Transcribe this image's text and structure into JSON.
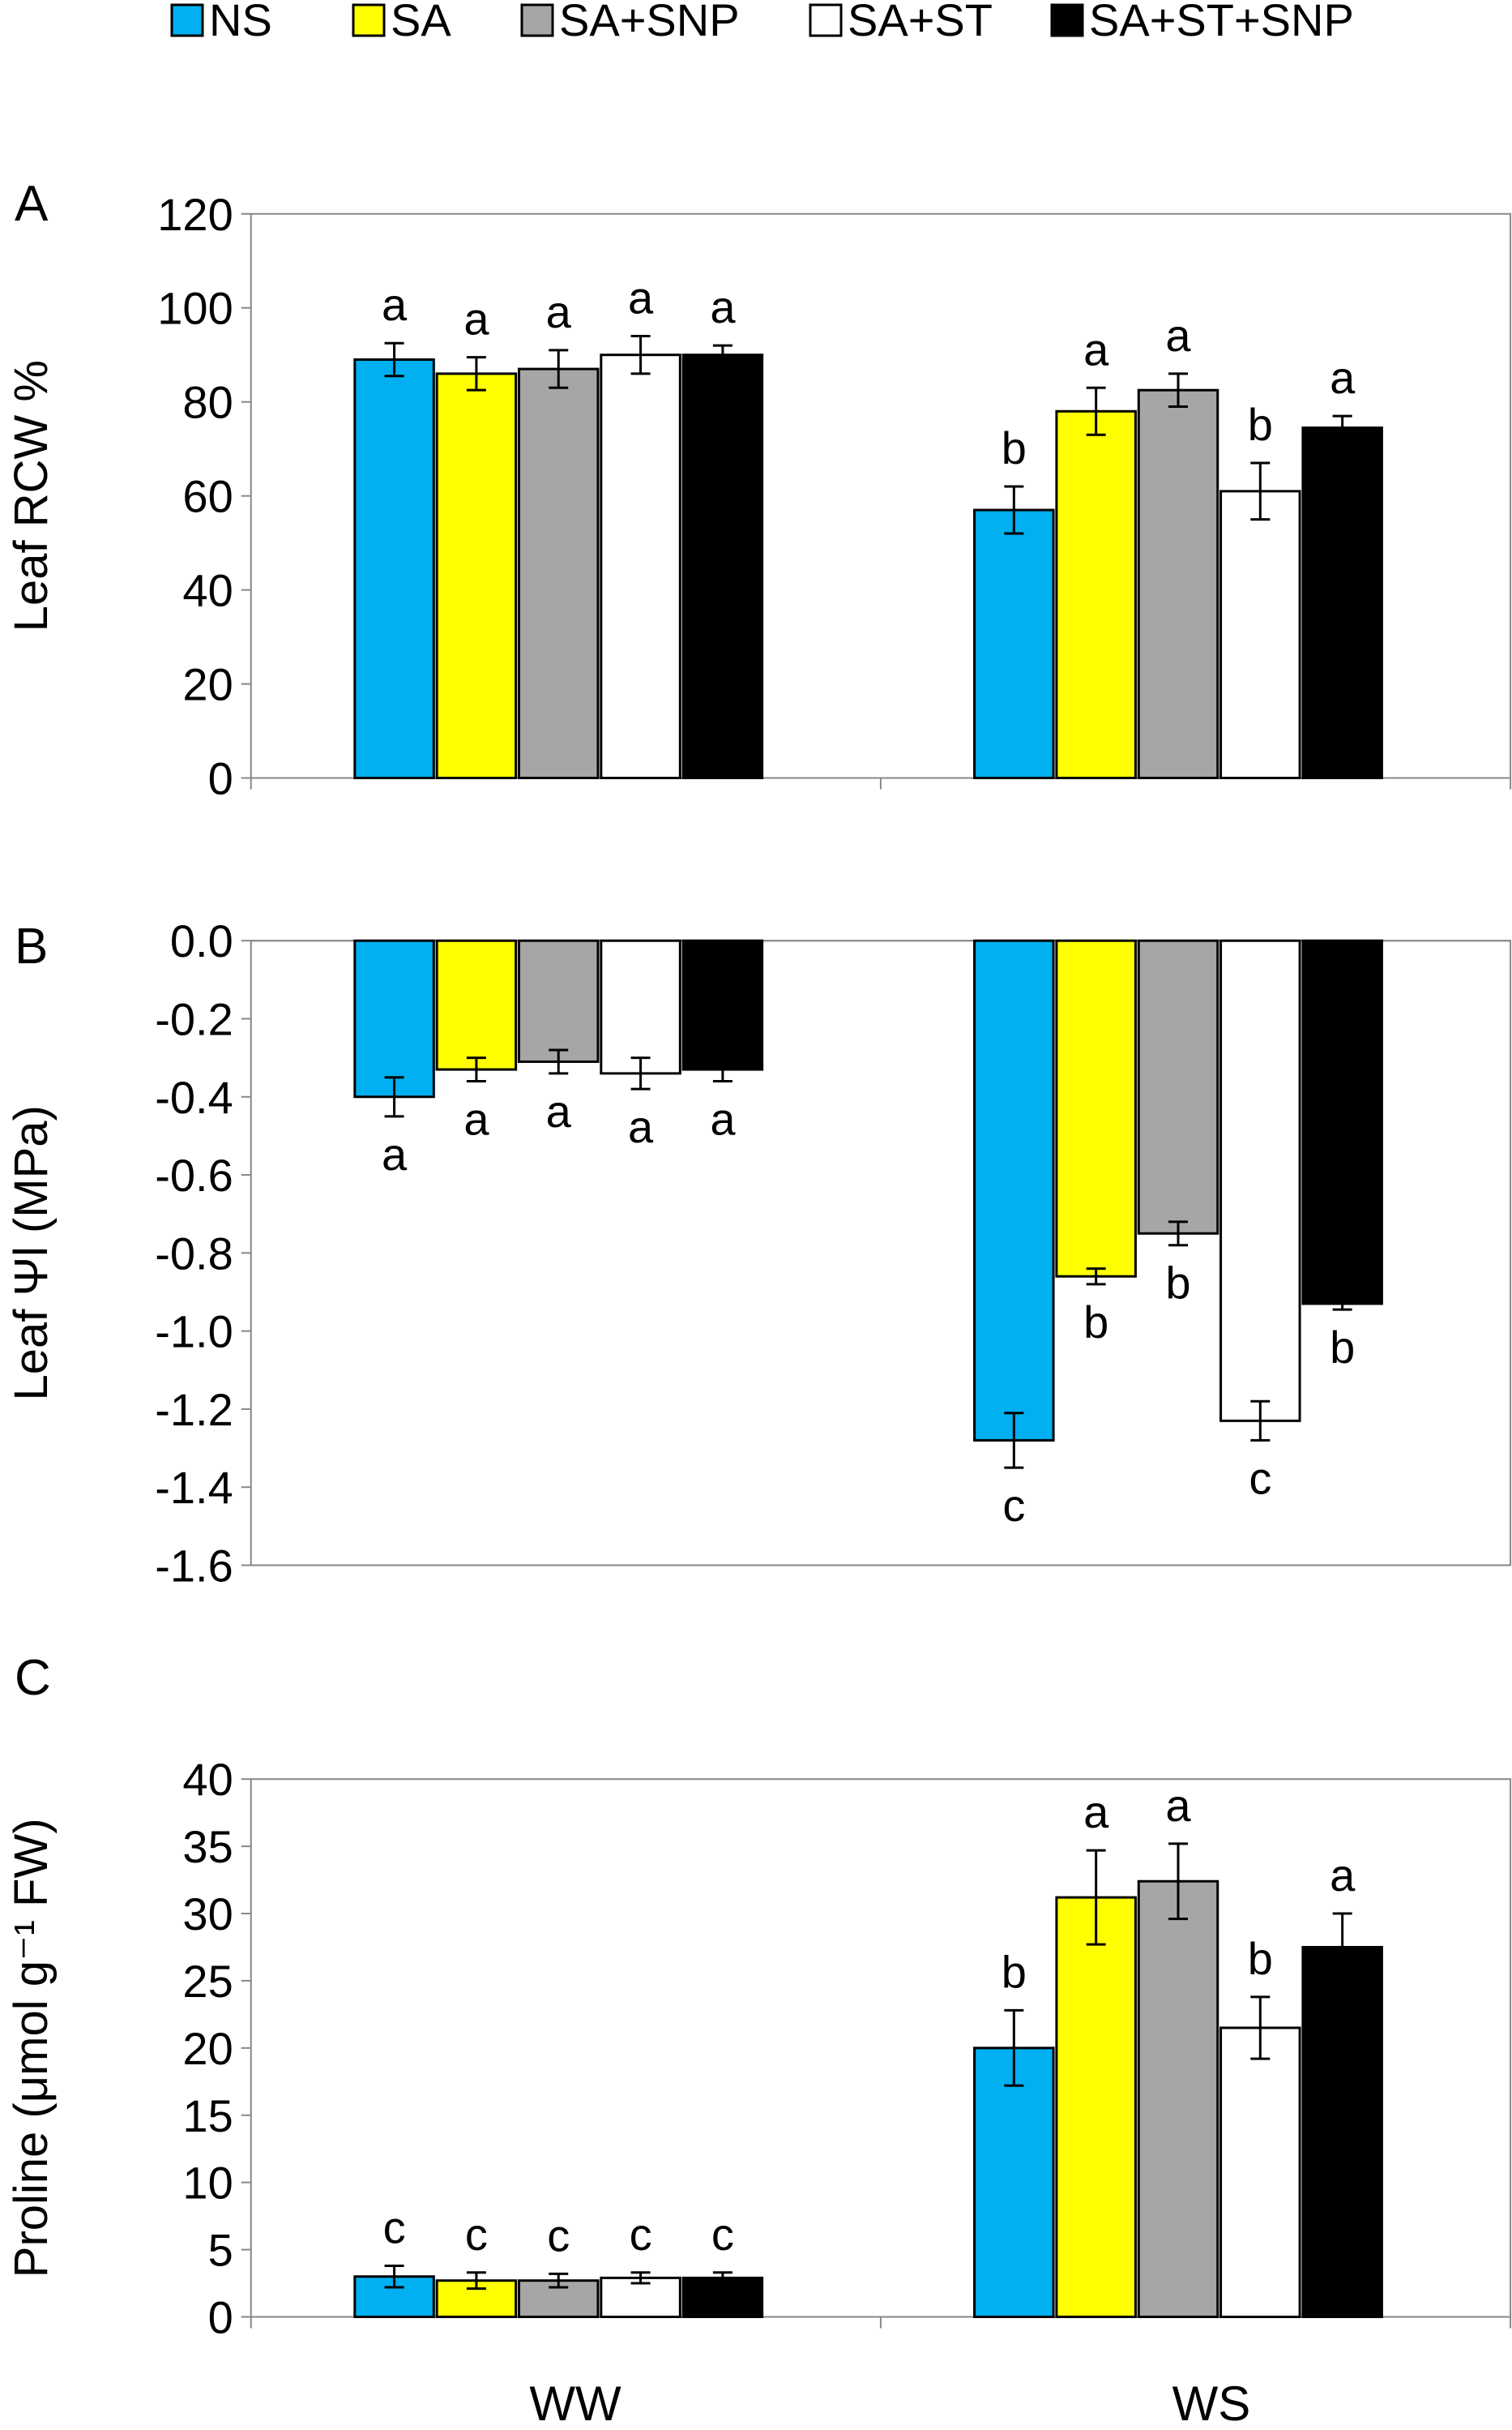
{
  "legend": {
    "placement": "top",
    "items": [
      {
        "label": "NS",
        "color": "#00B0F0"
      },
      {
        "label": "SA",
        "color": "#FFFF00"
      },
      {
        "label": "SA+SNP",
        "color": "#A6A6A6"
      },
      {
        "label": "SA+ST",
        "color": "#FFFFFF"
      },
      {
        "label": "SA+ST+SNP",
        "color": "#000000"
      }
    ]
  },
  "x_categories": [
    "WW",
    "WS"
  ],
  "chart_data": [
    {
      "type": "bar",
      "panel": "A",
      "ylabel": "Leaf RCW %",
      "ylim": [
        0,
        120
      ],
      "yticks": [
        "0",
        "20",
        "40",
        "60",
        "80",
        "100",
        "120"
      ],
      "grid": false,
      "categories": [
        "WW",
        "WS"
      ],
      "series": [
        {
          "name": "NS",
          "values": [
            89,
            57
          ],
          "errors": [
            3.5,
            5
          ],
          "letters": [
            "a",
            "b"
          ]
        },
        {
          "name": "SA",
          "values": [
            86,
            78
          ],
          "errors": [
            3.5,
            5
          ],
          "letters": [
            "a",
            "a"
          ]
        },
        {
          "name": "SA+SNP",
          "values": [
            87,
            82.5
          ],
          "errors": [
            4,
            3.5
          ],
          "letters": [
            "a",
            "a"
          ]
        },
        {
          "name": "SA+ST",
          "values": [
            90,
            61
          ],
          "errors": [
            4,
            6
          ],
          "letters": [
            "a",
            "b"
          ]
        },
        {
          "name": "SA+ST+SNP",
          "values": [
            90,
            74.5
          ],
          "errors": [
            2,
            2.5
          ],
          "letters": [
            "a",
            "a"
          ]
        }
      ]
    },
    {
      "type": "bar",
      "panel": "B",
      "ylabel": "Leaf Ψl (MPa)",
      "ylim": [
        -1.6,
        0
      ],
      "yticks": [
        "-1.6",
        "-1.4",
        "-1.2",
        "-1.0",
        "-0.8",
        "-0.6",
        "-0.4",
        "-0.2",
        "0.0"
      ],
      "grid": false,
      "categories": [
        "WW",
        "WS"
      ],
      "series": [
        {
          "name": "NS",
          "values": [
            -0.4,
            -1.28
          ],
          "errors": [
            0.05,
            0.07
          ],
          "letters": [
            "a",
            "c"
          ]
        },
        {
          "name": "SA",
          "values": [
            -0.33,
            -0.86
          ],
          "errors": [
            0.03,
            0.02
          ],
          "letters": [
            "a",
            "b"
          ]
        },
        {
          "name": "SA+SNP",
          "values": [
            -0.31,
            -0.75
          ],
          "errors": [
            0.03,
            0.03
          ],
          "letters": [
            "a",
            "b"
          ]
        },
        {
          "name": "SA+ST",
          "values": [
            -0.34,
            -1.23
          ],
          "errors": [
            0.04,
            0.05
          ],
          "letters": [
            "a",
            "c"
          ]
        },
        {
          "name": "SA+ST+SNP",
          "values": [
            -0.33,
            -0.93
          ],
          "errors": [
            0.03,
            0.015
          ],
          "letters": [
            "a",
            "b"
          ]
        }
      ]
    },
    {
      "type": "bar",
      "panel": "C",
      "ylabel": "Proline (μmol g⁻¹ FW)",
      "ylim": [
        0,
        40
      ],
      "yticks": [
        "0",
        "5",
        "10",
        "15",
        "20",
        "25",
        "30",
        "35",
        "40"
      ],
      "grid": false,
      "categories": [
        "WW",
        "WS"
      ],
      "series": [
        {
          "name": "NS",
          "values": [
            3,
            20
          ],
          "errors": [
            0.8,
            2.8
          ],
          "letters": [
            "c",
            "b"
          ]
        },
        {
          "name": "SA",
          "values": [
            2.7,
            31.2
          ],
          "errors": [
            0.6,
            3.5
          ],
          "letters": [
            "c",
            "a"
          ]
        },
        {
          "name": "SA+SNP",
          "values": [
            2.7,
            32.4
          ],
          "errors": [
            0.5,
            2.8
          ],
          "letters": [
            "c",
            "a"
          ]
        },
        {
          "name": "SA+ST",
          "values": [
            2.9,
            21.5
          ],
          "errors": [
            0.4,
            2.3
          ],
          "letters": [
            "c",
            "b"
          ]
        },
        {
          "name": "SA+ST+SNP",
          "values": [
            2.9,
            27.5
          ],
          "errors": [
            0.4,
            2.5
          ],
          "letters": [
            "c",
            "a"
          ]
        }
      ]
    }
  ]
}
